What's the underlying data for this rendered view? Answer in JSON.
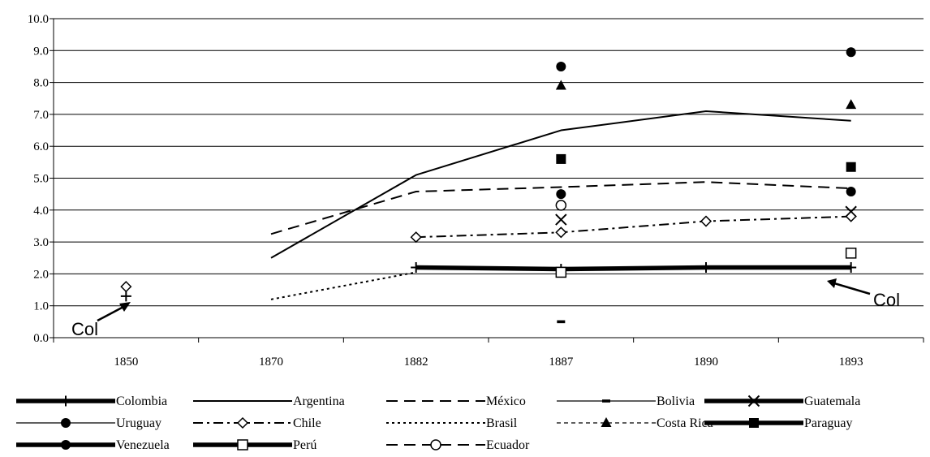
{
  "chart_data": {
    "type": "line",
    "categories": [
      "1850",
      "1870",
      "1882",
      "1887",
      "1890",
      "1893"
    ],
    "ylim": [
      0,
      10
    ],
    "y_ticks": [
      "0.0",
      "1.0",
      "2.0",
      "3.0",
      "4.0",
      "5.0",
      "6.0",
      "7.0",
      "8.0",
      "9.0",
      "10.0"
    ],
    "grid": "horizontal",
    "legend_position": "bottom",
    "annotations": [
      {
        "text": "Col",
        "points_to": "Colombia 1850"
      },
      {
        "text": "Col",
        "points_to": "Colombia 1893"
      }
    ],
    "series": [
      {
        "name": "Colombia",
        "values": [
          1.3,
          null,
          2.2,
          2.15,
          2.2,
          2.2
        ],
        "color": "#000000",
        "style": "thick-solid",
        "marker": "plus"
      },
      {
        "name": "Argentina",
        "values": [
          null,
          2.5,
          5.1,
          6.5,
          7.1,
          6.8
        ],
        "color": "#000000",
        "style": "solid",
        "marker": "none"
      },
      {
        "name": "México",
        "values": [
          null,
          3.25,
          4.58,
          4.72,
          4.88,
          4.68
        ],
        "color": "#000000",
        "style": "long-dash",
        "marker": "none"
      },
      {
        "name": "Bolivia",
        "values": [
          null,
          null,
          null,
          0.5,
          null,
          null
        ],
        "color": "#000000",
        "style": "thin-solid",
        "marker": "dash"
      },
      {
        "name": "Guatemala",
        "values": [
          null,
          null,
          null,
          3.7,
          null,
          3.95
        ],
        "color": "#000000",
        "style": "thick-solid",
        "marker": "x"
      },
      {
        "name": "Uruguay",
        "values": [
          null,
          null,
          null,
          8.5,
          null,
          8.95
        ],
        "color": "#000000",
        "style": "thin-solid",
        "marker": "circle-filled"
      },
      {
        "name": "Chile",
        "values": [
          1.6,
          null,
          3.15,
          3.3,
          3.65,
          3.8
        ],
        "color": "#000000",
        "style": "dash-dot",
        "marker": "diamond-open"
      },
      {
        "name": "Brasil",
        "values": [
          null,
          1.2,
          2.05,
          null,
          null,
          null
        ],
        "color": "#000000",
        "style": "dotted",
        "marker": "none"
      },
      {
        "name": "Costa Rica",
        "values": [
          null,
          null,
          null,
          7.9,
          null,
          7.3
        ],
        "color": "#000000",
        "style": "short-dash",
        "marker": "triangle-filled"
      },
      {
        "name": "Paraguay",
        "values": [
          null,
          null,
          null,
          5.6,
          null,
          5.35
        ],
        "color": "#000000",
        "style": "thick-solid",
        "marker": "square-filled"
      },
      {
        "name": "Venezuela",
        "values": [
          null,
          null,
          null,
          4.5,
          null,
          4.58
        ],
        "color": "#000000",
        "style": "thick-solid",
        "marker": "circle-filled"
      },
      {
        "name": "Perú",
        "values": [
          null,
          null,
          null,
          2.05,
          null,
          2.65
        ],
        "color": "#000000",
        "style": "thick-solid",
        "marker": "square-open"
      },
      {
        "name": "Ecuador",
        "values": [
          null,
          null,
          null,
          4.15,
          null,
          null
        ],
        "color": "#000000",
        "style": "long-dash",
        "marker": "circle-open"
      }
    ]
  }
}
